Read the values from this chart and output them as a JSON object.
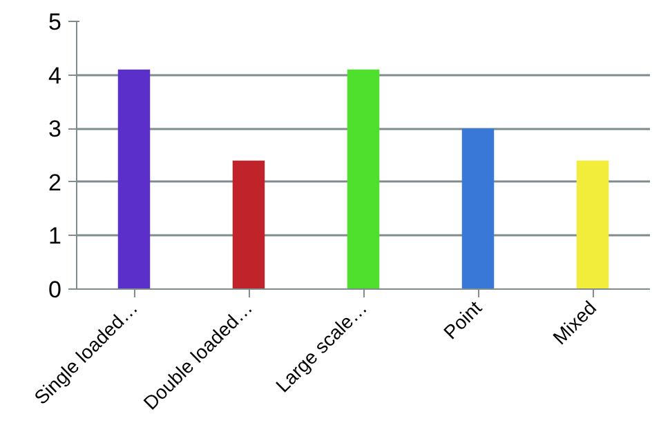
{
  "chart_data": {
    "type": "bar",
    "categories": [
      "Single loaded…",
      "Double loaded…",
      "Large scale…",
      "Point",
      "Mixed"
    ],
    "values": [
      4.1,
      2.4,
      4.1,
      3.0,
      2.4
    ],
    "colors": [
      "#5b2fc9",
      "#c0232a",
      "#4fe02d",
      "#3a78d8",
      "#f2ec3a"
    ],
    "ylim": [
      0,
      5
    ],
    "yticks": [
      0,
      1,
      2,
      3,
      4,
      5
    ],
    "grid": "y"
  }
}
